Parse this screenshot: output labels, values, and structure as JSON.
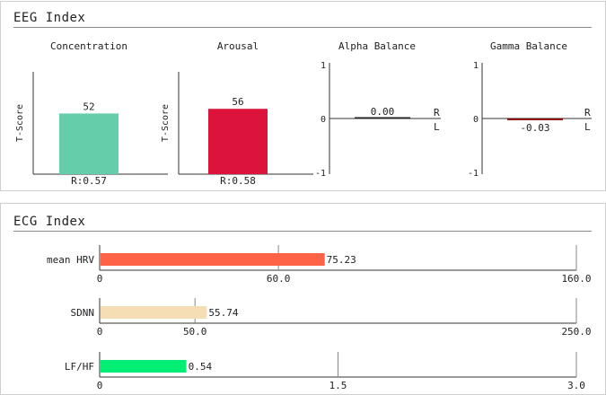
{
  "eeg": {
    "title": "EEG Index",
    "t_score_label": "T-Score",
    "charts": [
      {
        "title": "Concentration",
        "value": 52,
        "value_label": "52",
        "r_label": "R:0.57",
        "color": "#66cdaa",
        "ylim": [
          0,
          100
        ]
      },
      {
        "title": "Arousal",
        "value": 56,
        "value_label": "56",
        "r_label": "R:0.58",
        "color": "#dc143c",
        "ylim": [
          0,
          100
        ]
      }
    ],
    "balances": [
      {
        "title": "Alpha Balance",
        "value": 0.0,
        "value_label": "0.00",
        "color": "#222222"
      },
      {
        "title": "Gamma Balance",
        "value": -0.03,
        "value_label": "-0.03",
        "color": "#8b0000"
      }
    ],
    "balance_ticks": [
      "1",
      "0",
      "-1"
    ],
    "balance_right": "R",
    "balance_left": "L"
  },
  "ecg": {
    "title": "ECG Index",
    "rows": [
      {
        "label": "mean HRV",
        "value": 75.23,
        "value_label": "75.23",
        "max": 160.0,
        "mid": 60.0,
        "ticks": [
          "0",
          "60.0",
          "160.0"
        ],
        "color": "#ff6347"
      },
      {
        "label": "SDNN",
        "value": 55.74,
        "value_label": "55.74",
        "max": 250.0,
        "mid": 50.0,
        "ticks": [
          "0",
          "50.0",
          "250.0"
        ],
        "color": "#f5deb3"
      },
      {
        "label": "LF/HF",
        "value": 0.54,
        "value_label": "0.54",
        "max": 3.0,
        "mid": 1.5,
        "ticks": [
          "0",
          "1.5",
          "3.0"
        ],
        "color": "#00ee76"
      }
    ]
  },
  "chart_data": [
    {
      "type": "bar",
      "title": "Concentration",
      "ylabel": "T-Score",
      "values": [
        52
      ],
      "annotations": [
        "R:0.57"
      ],
      "ylim": [
        0,
        100
      ]
    },
    {
      "type": "bar",
      "title": "Arousal",
      "ylabel": "T-Score",
      "values": [
        56
      ],
      "annotations": [
        "R:0.58"
      ],
      "ylim": [
        0,
        100
      ]
    },
    {
      "type": "bar",
      "title": "Alpha Balance",
      "values": [
        0.0
      ],
      "ylim": [
        -1,
        1
      ]
    },
    {
      "type": "bar",
      "title": "Gamma Balance",
      "values": [
        -0.03
      ],
      "ylim": [
        -1,
        1
      ]
    },
    {
      "type": "bar",
      "orientation": "horizontal",
      "categories": [
        "mean HRV"
      ],
      "values": [
        75.23
      ],
      "xlim": [
        0,
        160.0
      ]
    },
    {
      "type": "bar",
      "orientation": "horizontal",
      "categories": [
        "SDNN"
      ],
      "values": [
        55.74
      ],
      "xlim": [
        0,
        250.0
      ]
    },
    {
      "type": "bar",
      "orientation": "horizontal",
      "categories": [
        "LF/HF"
      ],
      "values": [
        0.54
      ],
      "xlim": [
        0,
        3.0
      ]
    }
  ]
}
